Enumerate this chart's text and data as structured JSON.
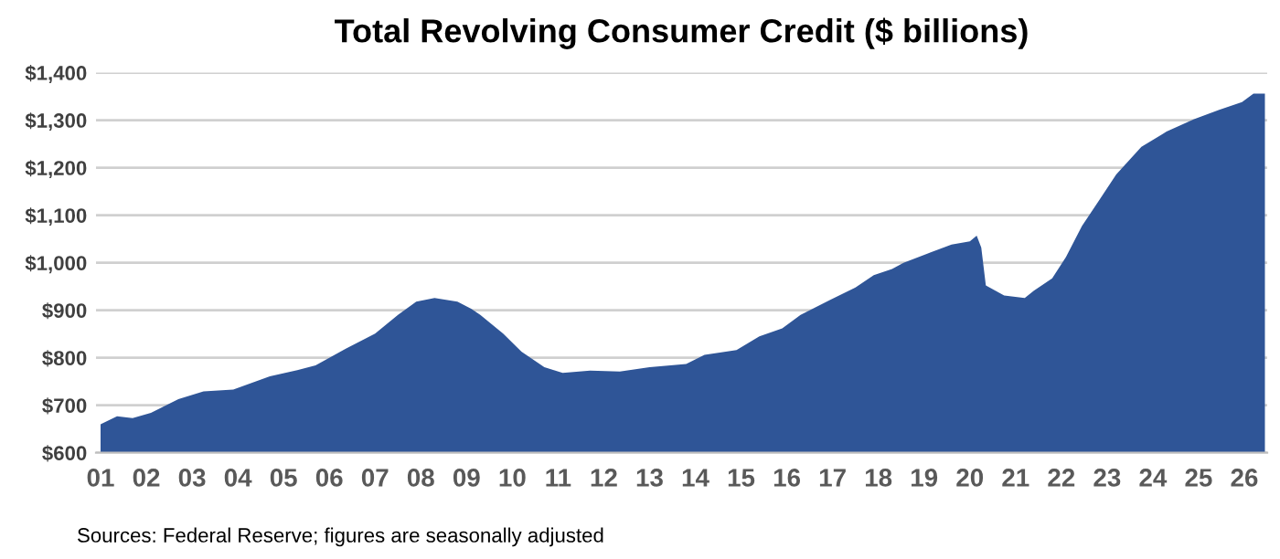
{
  "chart_data": {
    "type": "area",
    "title": "Total Revolving Consumer Credit ($ billions)",
    "x": [
      2001.0,
      2001.36,
      2001.7,
      2002.1,
      2002.7,
      2003.25,
      2003.9,
      2004.7,
      2005.3,
      2005.7,
      2006.36,
      2007.0,
      2007.5,
      2007.9,
      2008.3,
      2008.8,
      2009.1,
      2009.3,
      2009.8,
      2010.2,
      2010.7,
      2011.1,
      2011.7,
      2012.35,
      2013.0,
      2013.8,
      2014.2,
      2014.9,
      2015.4,
      2015.9,
      2016.3,
      2016.95,
      2017.5,
      2017.9,
      2018.3,
      2018.55,
      2019.07,
      2019.6,
      2020.0,
      2020.15,
      2020.25,
      2020.35,
      2020.75,
      2021.2,
      2021.4,
      2021.8,
      2022.1,
      2022.45,
      2022.85,
      2023.2,
      2023.75,
      2024.3,
      2024.9,
      2025.45,
      2025.95,
      2026.2,
      2026.45
    ],
    "series": [
      {
        "color": "#2f5597",
        "values": [
          660,
          677,
          673,
          684,
          713,
          729,
          733,
          761,
          774,
          784,
          819,
          851,
          890,
          918,
          926,
          918,
          903,
          890,
          851,
          813,
          780,
          768,
          773,
          771,
          780,
          787,
          806,
          816,
          845,
          862,
          890,
          922,
          948,
          974,
          987,
          1000,
          1019,
          1038,
          1045,
          1057,
          1032,
          952,
          931,
          926,
          941,
          967,
          1012,
          1077,
          1135,
          1186,
          1244,
          1276,
          1302,
          1322,
          1338,
          1356,
          1356
        ]
      }
    ],
    "xlim": [
      2000.9,
      2026.5
    ],
    "xticks": [
      {
        "value": 2001,
        "label": "01"
      },
      {
        "value": 2002,
        "label": "02"
      },
      {
        "value": 2003,
        "label": "03"
      },
      {
        "value": 2004,
        "label": "04"
      },
      {
        "value": 2005,
        "label": "05"
      },
      {
        "value": 2006,
        "label": "06"
      },
      {
        "value": 2007,
        "label": "07"
      },
      {
        "value": 2008,
        "label": "08"
      },
      {
        "value": 2009,
        "label": "09"
      },
      {
        "value": 2010,
        "label": "10"
      },
      {
        "value": 2011,
        "label": "11"
      },
      {
        "value": 2012,
        "label": "12"
      },
      {
        "value": 2013,
        "label": "13"
      },
      {
        "value": 2014,
        "label": "14"
      },
      {
        "value": 2015,
        "label": "15"
      },
      {
        "value": 2016,
        "label": "16"
      },
      {
        "value": 2017,
        "label": "17"
      },
      {
        "value": 2018,
        "label": "18"
      },
      {
        "value": 2019,
        "label": "19"
      },
      {
        "value": 2020,
        "label": "20"
      },
      {
        "value": 2021,
        "label": "21"
      },
      {
        "value": 2022,
        "label": "22"
      },
      {
        "value": 2023,
        "label": "23"
      },
      {
        "value": 2024,
        "label": "24"
      },
      {
        "value": 2025,
        "label": "25"
      },
      {
        "value": 2026,
        "label": "26"
      }
    ],
    "ylim": [
      600,
      1400
    ],
    "yticks": [
      {
        "value": 600,
        "label": "$600"
      },
      {
        "value": 700,
        "label": "$700"
      },
      {
        "value": 800,
        "label": "$800"
      },
      {
        "value": 900,
        "label": "$900"
      },
      {
        "value": 1000,
        "label": "$1,000"
      },
      {
        "value": 1100,
        "label": "$1,100"
      },
      {
        "value": 1200,
        "label": "$1,200"
      },
      {
        "value": 1300,
        "label": "$1,300"
      },
      {
        "value": 1400,
        "label": "$1,400"
      }
    ],
    "grid": "y",
    "annotations": [
      "Sources: Federal Reserve; figures are seasonally adjusted"
    ]
  }
}
